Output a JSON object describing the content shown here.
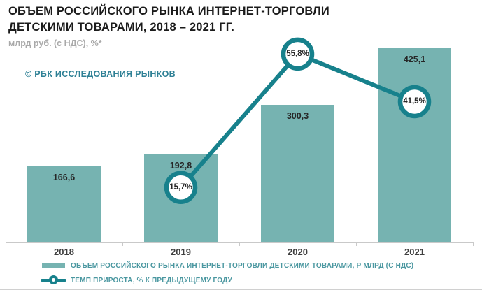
{
  "header": {
    "title": "ОБЪЕМ РОССИЙСКОГО РЫНКА ИНТЕРНЕТ-ТОРГОВЛИ ДЕТСКИМИ ТОВАРАМИ, 2018 – 2021 ГГ.",
    "subtitle": "млрд руб. (с НДС), %*"
  },
  "watermark": "© РБК ИССЛЕДОВАНИЯ РЫНКОВ",
  "colors": {
    "bar": "#76b3b1",
    "line": "#17818c",
    "title_text": "#1b1b1b",
    "subtitle_text": "#a9a9a9",
    "watermark_text": "#2e8095",
    "legend_text": "#4a97a0",
    "axis": "#c9c9c9",
    "value_label_text": "#262626"
  },
  "chart_data": {
    "type": "bar",
    "title": "ОБЪЕМ РОССИЙСКОГО РЫНКА ИНТЕРНЕТ-ТОРГОВЛИ ДЕТСКИМИ ТОВАРАМИ, 2018 – 2021 ГГ.",
    "subtitle": "млрд руб. (с НДС), %*",
    "categories": [
      "2018",
      "2019",
      "2020",
      "2021"
    ],
    "series": [
      {
        "name": "ОБЪЕМ РОССИЙСКОГО РЫНКА ИНТЕРНЕТ-ТОРГОВЛИ ДЕТСКИМИ ТОВАРАМИ, Р МЛРД  (С НДС)",
        "type": "bar",
        "values": [
          166.6,
          192.8,
          300.3,
          425.1
        ],
        "labels": [
          "166,6",
          "192,8",
          "300,3",
          "425,1"
        ]
      },
      {
        "name": "ТЕМП ПРИРОСТА, % К ПРЕДЫДУЩЕМУ ГОДУ",
        "type": "line",
        "values": [
          null,
          15.7,
          55.8,
          41.5
        ],
        "labels": [
          null,
          "15,7%",
          "55,8%",
          "41,5%"
        ]
      }
    ],
    "xlabel": "",
    "ylabel": "млрд руб. (с НДС)",
    "ylim": [
      0,
      520
    ],
    "y2lim": [
      0,
      72
    ],
    "grid": false,
    "legend_position": "bottom-left"
  }
}
